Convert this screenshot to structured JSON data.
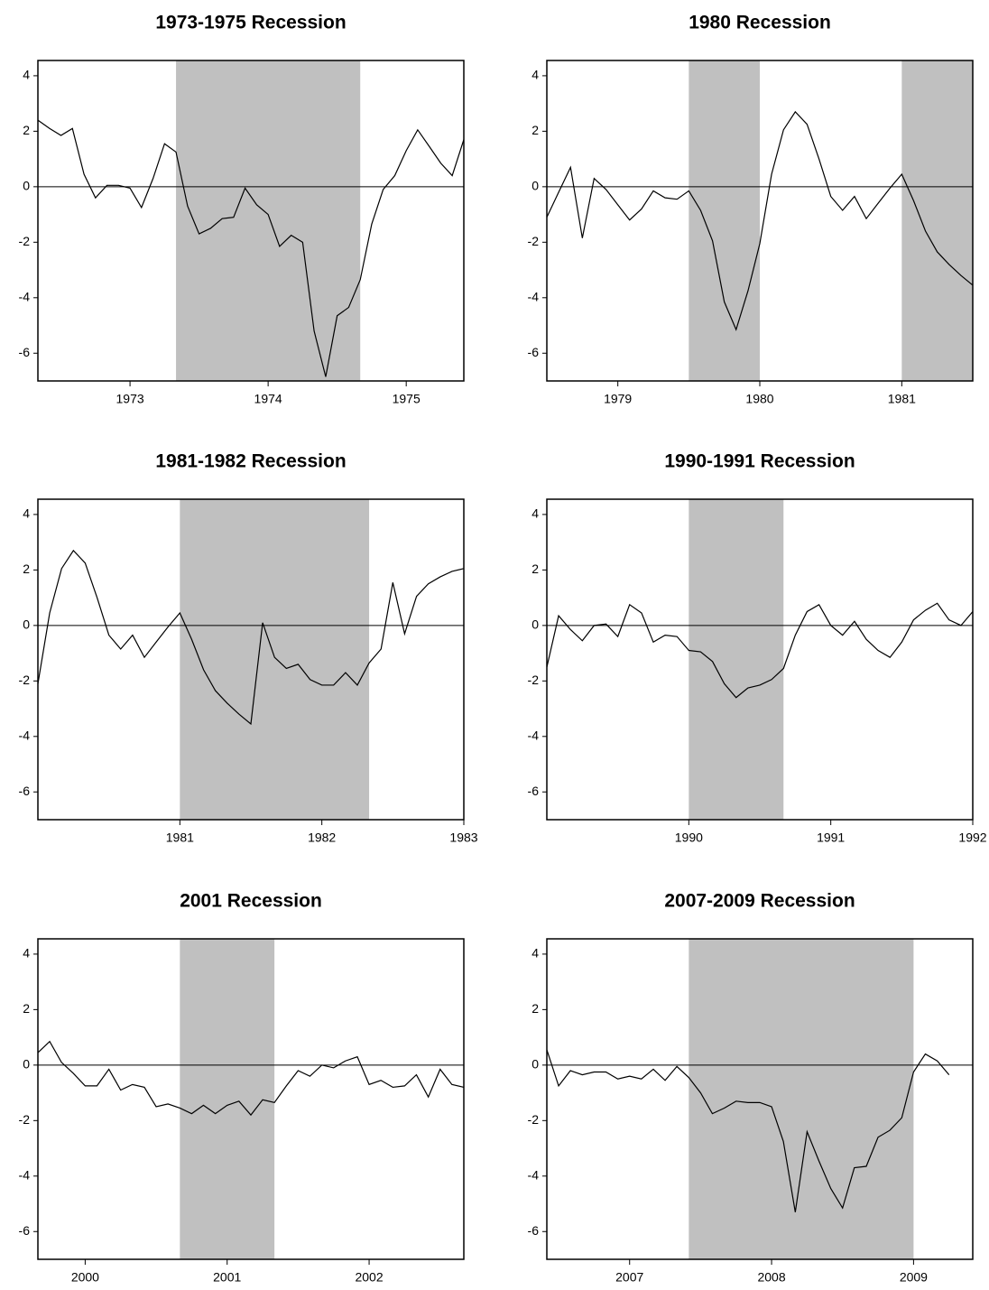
{
  "chart_data": [
    {
      "type": "line",
      "title": "1973-1975 Recession",
      "color": "#000000",
      "shading_color": "#c0c0c0",
      "zero_line": true,
      "shading": [
        [
          1973.833,
          1975.167
        ]
      ],
      "x": [
        1972.833,
        1972.917,
        1973,
        1973.083,
        1973.167,
        1973.25,
        1973.333,
        1973.417,
        1973.5,
        1973.583,
        1973.667,
        1973.75,
        1973.833,
        1973.917,
        1974,
        1974.083,
        1974.167,
        1974.25,
        1974.333,
        1974.417,
        1974.5,
        1974.583,
        1974.667,
        1974.75,
        1974.833,
        1974.917,
        1975,
        1975.083,
        1975.167,
        1975.25,
        1975.333,
        1975.417,
        1975.5,
        1975.583,
        1975.667,
        1975.75,
        1975.833,
        1975.917
      ],
      "values": [
        2.4,
        2.1,
        1.85,
        2.1,
        0.45,
        -0.4,
        0.05,
        0.05,
        -0.05,
        -0.75,
        0.3,
        1.55,
        1.25,
        -0.7,
        -1.7,
        -1.5,
        -1.15,
        -1.1,
        -0.05,
        -0.65,
        -1.0,
        -2.15,
        -1.75,
        -2.0,
        -5.2,
        -6.85,
        -4.65,
        -4.35,
        -3.35,
        -1.35,
        -0.1,
        0.4,
        1.3,
        2.05,
        1.45,
        0.85,
        0.4,
        1.7
      ],
      "xlim": [
        1972.833,
        1975.917
      ],
      "ylim": [
        -7,
        4.55
      ],
      "xticks": [
        {
          "value": 1973.5,
          "label": "1973"
        },
        {
          "value": 1974.5,
          "label": "1974"
        },
        {
          "value": 1975.5,
          "label": "1975"
        }
      ],
      "yticks": [
        -6,
        -4,
        -2,
        0,
        2,
        4
      ]
    },
    {
      "type": "line",
      "title": "1980 Recession",
      "color": "#000000",
      "shading_color": "#c0c0c0",
      "zero_line": true,
      "shading": [
        [
          1980,
          1980.5
        ],
        [
          1981.5,
          1982
        ]
      ],
      "x": [
        1979,
        1979.083,
        1979.167,
        1979.25,
        1979.333,
        1979.417,
        1979.5,
        1979.583,
        1979.667,
        1979.75,
        1979.833,
        1979.917,
        1980,
        1980.083,
        1980.167,
        1980.25,
        1980.333,
        1980.417,
        1980.5,
        1980.583,
        1980.667,
        1980.75,
        1980.833,
        1980.917,
        1981,
        1981.083,
        1981.167,
        1981.25,
        1981.333,
        1981.417,
        1981.5,
        1981.583,
        1981.667,
        1981.75,
        1981.833,
        1981.917,
        1982
      ],
      "values": [
        -1.1,
        -0.2,
        0.7,
        -1.85,
        0.3,
        -0.1,
        -0.65,
        -1.2,
        -0.8,
        -0.15,
        -0.4,
        -0.45,
        -0.15,
        -0.85,
        -1.95,
        -4.15,
        -5.15,
        -3.75,
        -2.05,
        0.45,
        2.05,
        2.7,
        2.25,
        1.0,
        -0.35,
        -0.85,
        -0.35,
        -1.15,
        -0.6,
        -0.05,
        0.45,
        -0.5,
        -1.6,
        -2.35,
        -2.8,
        -3.2,
        -3.55
      ],
      "xlim": [
        1979,
        1982
      ],
      "ylim": [
        -7,
        4.55
      ],
      "xticks": [
        {
          "value": 1979.5,
          "label": "1979"
        },
        {
          "value": 1980.5,
          "label": "1980"
        },
        {
          "value": 1981.5,
          "label": "1981"
        }
      ],
      "yticks": [
        -6,
        -4,
        -2,
        0,
        2,
        4
      ]
    },
    {
      "type": "line",
      "title": "1981-1982 Recession",
      "color": "#000000",
      "shading_color": "#c0c0c0",
      "zero_line": true,
      "shading": [
        [
          1981.5,
          1982.833
        ]
      ],
      "x": [
        1980.5,
        1980.583,
        1980.667,
        1980.75,
        1980.833,
        1980.917,
        1981,
        1981.083,
        1981.167,
        1981.25,
        1981.333,
        1981.417,
        1981.5,
        1981.583,
        1981.667,
        1981.75,
        1981.833,
        1981.917,
        1982,
        1982.083,
        1982.167,
        1982.25,
        1982.333,
        1982.417,
        1982.5,
        1982.583,
        1982.667,
        1982.75,
        1982.833,
        1982.917,
        1983,
        1983.083,
        1983.167,
        1983.25,
        1983.333,
        1983.417,
        1983.5
      ],
      "values": [
        -2.1,
        0.45,
        2.05,
        2.7,
        2.25,
        1.0,
        -0.35,
        -0.85,
        -0.35,
        -1.15,
        -0.6,
        -0.05,
        0.45,
        -0.5,
        -1.6,
        -2.35,
        -2.8,
        -3.2,
        -3.55,
        0.1,
        -1.15,
        -1.55,
        -1.4,
        -1.95,
        -2.15,
        -2.15,
        -1.7,
        -2.15,
        -1.35,
        -0.85,
        1.55,
        -0.3,
        1.05,
        1.5,
        1.75,
        1.95,
        2.05
      ],
      "xlim": [
        1980.5,
        1983.5
      ],
      "ylim": [
        -7,
        4.55
      ],
      "xticks": [
        {
          "value": 1981.5,
          "label": "1981"
        },
        {
          "value": 1982.5,
          "label": "1982"
        },
        {
          "value": 1983.5,
          "label": "1983"
        }
      ],
      "yticks": [
        -6,
        -4,
        -2,
        0,
        2,
        4
      ]
    },
    {
      "type": "line",
      "title": "1990-1991 Recession",
      "color": "#000000",
      "shading_color": "#c0c0c0",
      "zero_line": true,
      "shading": [
        [
          1990.5,
          1991.167
        ]
      ],
      "x": [
        1989.5,
        1989.583,
        1989.667,
        1989.75,
        1989.833,
        1989.917,
        1990,
        1990.083,
        1990.167,
        1990.25,
        1990.333,
        1990.417,
        1990.5,
        1990.583,
        1990.667,
        1990.75,
        1990.833,
        1990.917,
        1991,
        1991.083,
        1991.167,
        1991.25,
        1991.333,
        1991.417,
        1991.5,
        1991.583,
        1991.667,
        1991.75,
        1991.833,
        1991.917,
        1992,
        1992.083,
        1992.167,
        1992.25,
        1992.333,
        1992.417,
        1992.5
      ],
      "values": [
        -1.5,
        0.35,
        -0.15,
        -0.55,
        0.0,
        0.05,
        -0.4,
        0.75,
        0.45,
        -0.6,
        -0.35,
        -0.4,
        -0.9,
        -0.95,
        -1.3,
        -2.1,
        -2.6,
        -2.25,
        -2.15,
        -1.95,
        -1.55,
        -0.35,
        0.5,
        0.75,
        0.0,
        -0.35,
        0.15,
        -0.5,
        -0.9,
        -1.15,
        -0.6,
        0.2,
        0.55,
        0.8,
        0.2,
        0.0,
        0.5
      ],
      "xlim": [
        1989.5,
        1992.5
      ],
      "ylim": [
        -7,
        4.55
      ],
      "xticks": [
        {
          "value": 1990.5,
          "label": "1990"
        },
        {
          "value": 1991.5,
          "label": "1991"
        },
        {
          "value": 1992.5,
          "label": "1992"
        }
      ],
      "yticks": [
        -6,
        -4,
        -2,
        0,
        2,
        4
      ]
    },
    {
      "type": "line",
      "title": "2001 Recession",
      "color": "#000000",
      "shading_color": "#c0c0c0",
      "zero_line": true,
      "shading": [
        [
          2001.167,
          2001.833
        ]
      ],
      "x": [
        2000.167,
        2000.25,
        2000.333,
        2000.417,
        2000.5,
        2000.583,
        2000.667,
        2000.75,
        2000.833,
        2000.917,
        2001,
        2001.083,
        2001.167,
        2001.25,
        2001.333,
        2001.417,
        2001.5,
        2001.583,
        2001.667,
        2001.75,
        2001.833,
        2001.917,
        2002,
        2002.083,
        2002.167,
        2002.25,
        2002.333,
        2002.417,
        2002.5,
        2002.583,
        2002.667,
        2002.75,
        2002.833,
        2002.917,
        2003,
        2003.083,
        2003.167
      ],
      "values": [
        0.45,
        0.85,
        0.1,
        -0.3,
        -0.75,
        -0.75,
        -0.15,
        -0.9,
        -0.7,
        -0.8,
        -1.5,
        -1.4,
        -1.55,
        -1.75,
        -1.45,
        -1.75,
        -1.45,
        -1.3,
        -1.8,
        -1.25,
        -1.35,
        -0.75,
        -0.2,
        -0.4,
        0.0,
        -0.1,
        0.15,
        0.3,
        -0.7,
        -0.55,
        -0.8,
        -0.75,
        -0.35,
        -1.15,
        -0.15,
        -0.7,
        -0.8
      ],
      "xlim": [
        2000.167,
        2003.167
      ],
      "ylim": [
        -7,
        4.55
      ],
      "xticks": [
        {
          "value": 2000.5,
          "label": "2000"
        },
        {
          "value": 2001.5,
          "label": "2001"
        },
        {
          "value": 2002.5,
          "label": "2002"
        }
      ],
      "yticks": [
        -6,
        -4,
        -2,
        0,
        2,
        4
      ]
    },
    {
      "type": "line",
      "title": "2007-2009 Recession",
      "color": "#000000",
      "shading_color": "#c0c0c0",
      "zero_line": true,
      "shading": [
        [
          2007.917,
          2009.5
        ]
      ],
      "x": [
        2006.917,
        2007,
        2007.083,
        2007.167,
        2007.25,
        2007.333,
        2007.417,
        2007.5,
        2007.583,
        2007.667,
        2007.75,
        2007.833,
        2007.917,
        2008,
        2008.083,
        2008.167,
        2008.25,
        2008.333,
        2008.417,
        2008.5,
        2008.583,
        2008.667,
        2008.75,
        2008.833,
        2008.917,
        2009,
        2009.083,
        2009.167,
        2009.25,
        2009.333,
        2009.417,
        2009.5,
        2009.583,
        2009.667,
        2009.75
      ],
      "values": [
        0.55,
        -0.75,
        -0.2,
        -0.35,
        -0.25,
        -0.25,
        -0.5,
        -0.4,
        -0.5,
        -0.15,
        -0.55,
        -0.05,
        -0.45,
        -1.0,
        -1.75,
        -1.55,
        -1.3,
        -1.35,
        -1.35,
        -1.5,
        -2.75,
        -5.3,
        -2.4,
        -3.45,
        -4.45,
        -5.15,
        -3.7,
        -3.65,
        -2.6,
        -2.35,
        -1.9,
        -0.25,
        0.4,
        0.15,
        -0.35
      ],
      "xlim": [
        2006.917,
        2009.917
      ],
      "ylim": [
        -7,
        4.55
      ],
      "xticks": [
        {
          "value": 2007.5,
          "label": "2007"
        },
        {
          "value": 2008.5,
          "label": "2008"
        },
        {
          "value": 2009.5,
          "label": "2009"
        }
      ],
      "yticks": [
        -6,
        -4,
        -2,
        0,
        2,
        4
      ]
    }
  ]
}
